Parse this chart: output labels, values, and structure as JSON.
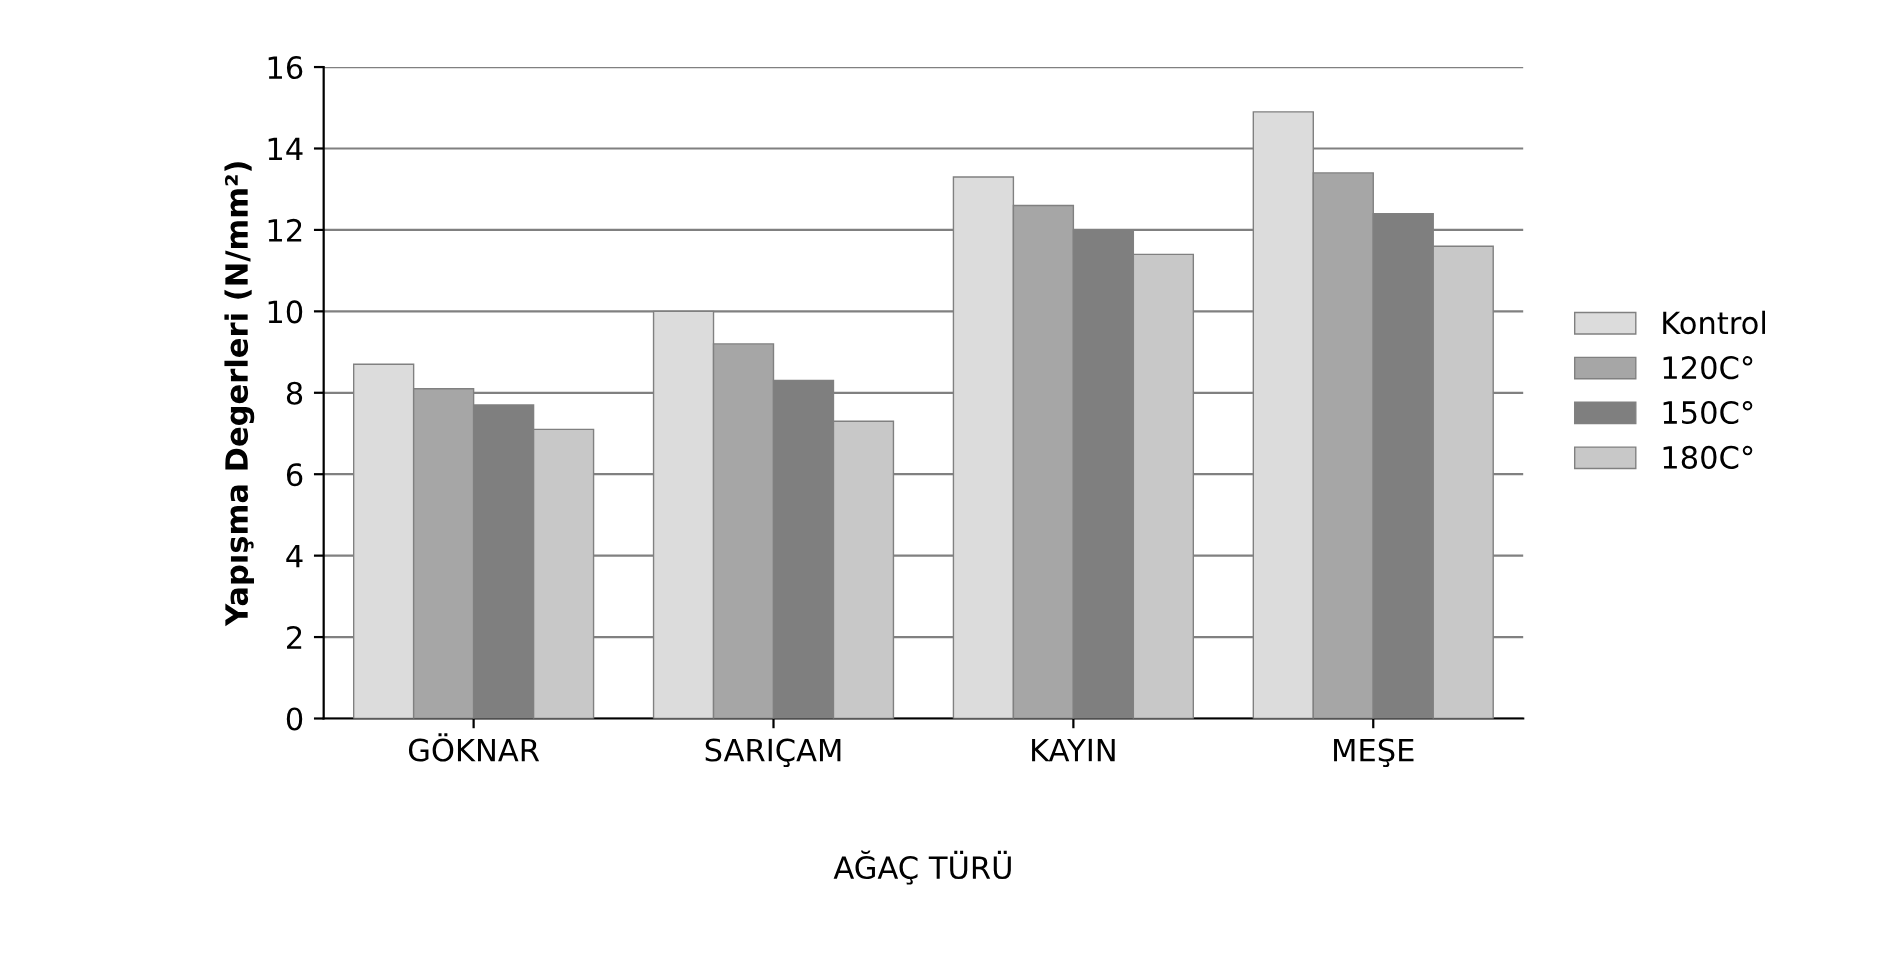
{
  "chart_data": {
    "type": "bar",
    "xlabel": "AĞAÇ TÜRÜ",
    "ylabel": "Yapışma Degerleri (N/mm²)",
    "categories": [
      "GÖKNAR",
      "SARIÇAM",
      "KAYIN",
      "MEŞE"
    ],
    "series": [
      {
        "name": "Kontrol",
        "color": "#dcdcdc",
        "values": [
          8.7,
          10.0,
          13.3,
          14.9
        ]
      },
      {
        "name": "120C°",
        "color": "#a6a6a6",
        "values": [
          8.1,
          9.2,
          12.6,
          13.4
        ]
      },
      {
        "name": "150C°",
        "color": "#7f7f7f",
        "values": [
          7.7,
          8.3,
          12.0,
          12.4
        ]
      },
      {
        "name": "180C°",
        "color": "#c8c8c8",
        "values": [
          7.1,
          7.3,
          11.4,
          11.6
        ]
      }
    ],
    "ylim": [
      0,
      16
    ],
    "yticks": [
      0,
      2,
      4,
      6,
      8,
      10,
      12,
      14,
      16
    ],
    "grid": "y",
    "legend": "right"
  }
}
